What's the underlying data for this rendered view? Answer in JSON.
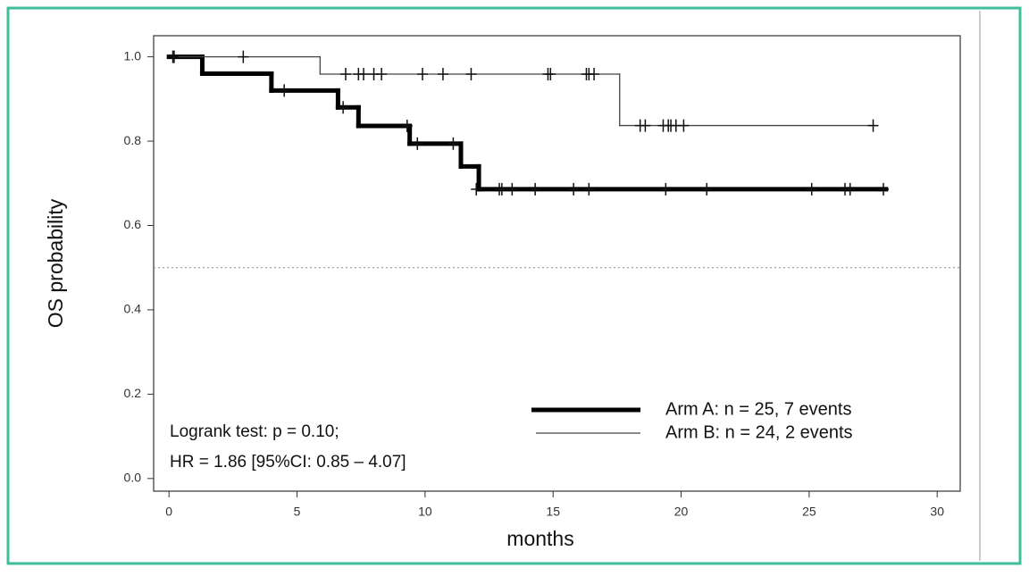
{
  "chart_data": {
    "type": "km",
    "xlabel": "months",
    "ylabel": "OS probability",
    "xlim": [
      -0.6,
      30.9
    ],
    "ylim": [
      -0.03,
      1.05
    ],
    "xticks": [
      0,
      5,
      10,
      15,
      20,
      25,
      30
    ],
    "yticks": [
      {
        "value": 0,
        "label": "0.0"
      },
      {
        "value": 0.2,
        "label": "0.2"
      },
      {
        "value": 0.4,
        "label": "0.4"
      },
      {
        "value": 0.6,
        "label": "0.6"
      },
      {
        "value": 0.8,
        "label": "0.8"
      },
      {
        "value": 1,
        "label": "1.0"
      }
    ],
    "reference_y": 0.5,
    "series": [
      {
        "name": "Arm A: n = 25, 7 events",
        "color": "#000000",
        "width": 5,
        "x": [
          0,
          1.3,
          4.0,
          6.6,
          7.4,
          9.4,
          11.4,
          12.1,
          28.0
        ],
        "values": [
          1,
          0.96,
          0.92,
          0.88,
          0.836,
          0.794,
          0.74,
          0.686,
          0.686
        ],
        "censored": {
          "x": [
            0.2,
            4.5,
            6.8,
            9.3,
            9.7,
            11.1,
            12.0,
            12.9,
            13.0,
            13.4,
            14.3,
            15.8,
            16.4,
            19.4,
            21.0,
            25.1,
            26.4,
            26.6,
            27.9
          ],
          "values": [
            1,
            0.92,
            0.88,
            0.836,
            0.794,
            0.794,
            0.686,
            0.686,
            0.686,
            0.686,
            0.686,
            0.686,
            0.686,
            0.686,
            0.686,
            0.686,
            0.686,
            0.686,
            0.686
          ]
        }
      },
      {
        "name": "Arm B: n = 24, 2 events",
        "color": "#444444",
        "width": 1.3,
        "x": [
          0,
          5.9,
          17.6,
          27.5
        ],
        "values": [
          1,
          0.959,
          0.837,
          0.837
        ],
        "censored": {
          "x": [
            0.15,
            2.9,
            6.9,
            7.4,
            7.6,
            8.0,
            8.3,
            9.9,
            10.7,
            11.8,
            14.8,
            14.9,
            16.3,
            16.4,
            16.6,
            18.4,
            18.6,
            19.3,
            19.5,
            19.6,
            19.8,
            20.1,
            27.5
          ],
          "values": [
            1,
            1,
            0.959,
            0.959,
            0.959,
            0.959,
            0.959,
            0.959,
            0.959,
            0.959,
            0.959,
            0.959,
            0.959,
            0.959,
            0.959,
            0.837,
            0.837,
            0.837,
            0.837,
            0.837,
            0.837,
            0.837,
            0.837
          ]
        }
      }
    ],
    "annotations": [
      "Logrank test: p = 0.10;",
      "HR = 1.86 [95%CI: 0.85 – 4.07]"
    ]
  }
}
